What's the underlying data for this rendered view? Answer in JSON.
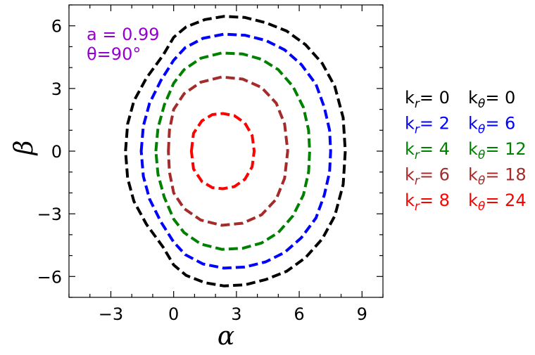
{
  "chart_data": {
    "type": "line",
    "xlabel": "α",
    "ylabel": "β",
    "xlim": [
      -5,
      10
    ],
    "ylim": [
      -7,
      7
    ],
    "xticks": [
      -3,
      0,
      3,
      6,
      9
    ],
    "yticks": [
      -6,
      -3,
      0,
      3,
      6
    ],
    "xtick_labels": [
      "−3",
      "0",
      "3",
      "6",
      "9"
    ],
    "ytick_labels": [
      "−6",
      "−3",
      "0",
      "3",
      "6"
    ],
    "grid": false,
    "legend_position": "right, outside plot",
    "annotation": {
      "line1": "a = 0.99",
      "line2": "θ=90°",
      "color": "#9400D3"
    },
    "series": [
      {
        "name_kr": "k_r = 0",
        "name_kt": "k_θ = 0",
        "kr_label": "k",
        "kr_sub": "r",
        "kr_val": "= 0",
        "kt_label": "k",
        "kt_sub": "θ",
        "kt_val": "= 0",
        "color": "#000000",
        "points": [
          [
            -2.3,
            0
          ],
          [
            -2.2,
            1.3
          ],
          [
            -1.9,
            2.4
          ],
          [
            -1.3,
            3.5
          ],
          [
            -0.5,
            4.6
          ],
          [
            0,
            5.45
          ],
          [
            0.6,
            5.95
          ],
          [
            1.5,
            6.3
          ],
          [
            2.4,
            6.45
          ],
          [
            3.4,
            6.4
          ],
          [
            4.4,
            6.15
          ],
          [
            5.4,
            5.75
          ],
          [
            6.3,
            5.1
          ],
          [
            7.1,
            4.2
          ],
          [
            7.7,
            3.1
          ],
          [
            8.1,
            1.6
          ],
          [
            8.2,
            0
          ],
          [
            8.1,
            -1.6
          ],
          [
            7.7,
            -3.1
          ],
          [
            7.1,
            -4.2
          ],
          [
            6.3,
            -5.1
          ],
          [
            5.4,
            -5.75
          ],
          [
            4.4,
            -6.15
          ],
          [
            3.4,
            -6.4
          ],
          [
            2.4,
            -6.45
          ],
          [
            1.5,
            -6.3
          ],
          [
            0.6,
            -5.95
          ],
          [
            0,
            -5.45
          ],
          [
            -0.5,
            -4.6
          ],
          [
            -1.3,
            -3.5
          ],
          [
            -1.9,
            -2.4
          ],
          [
            -2.2,
            -1.3
          ]
        ]
      },
      {
        "name_kr": "k_r = 2",
        "name_kt": "k_θ = 6",
        "kr_label": "k",
        "kr_sub": "r",
        "kr_val": "= 2",
        "kt_label": "k",
        "kt_sub": "θ",
        "kt_val": "= 6",
        "color": "#0000FF",
        "points": [
          [
            -1.55,
            0
          ],
          [
            -1.45,
            1.2
          ],
          [
            -1.15,
            2.3
          ],
          [
            -0.6,
            3.4
          ],
          [
            0,
            4.35
          ],
          [
            0.55,
            4.95
          ],
          [
            1.4,
            5.4
          ],
          [
            2.4,
            5.6
          ],
          [
            3.4,
            5.55
          ],
          [
            4.4,
            5.3
          ],
          [
            5.3,
            4.85
          ],
          [
            6.1,
            4.15
          ],
          [
            6.8,
            3.2
          ],
          [
            7.2,
            2.1
          ],
          [
            7.45,
            1.0
          ],
          [
            7.5,
            0
          ],
          [
            7.45,
            -1.0
          ],
          [
            7.2,
            -2.1
          ],
          [
            6.8,
            -3.2
          ],
          [
            6.1,
            -4.15
          ],
          [
            5.3,
            -4.85
          ],
          [
            4.4,
            -5.3
          ],
          [
            3.4,
            -5.55
          ],
          [
            2.4,
            -5.6
          ],
          [
            1.4,
            -5.4
          ],
          [
            0.55,
            -4.95
          ],
          [
            0,
            -4.35
          ],
          [
            -0.6,
            -3.4
          ],
          [
            -1.15,
            -2.3
          ],
          [
            -1.45,
            -1.2
          ]
        ]
      },
      {
        "name_kr": "k_r = 4",
        "name_kt": "k_θ = 12",
        "kr_label": "k",
        "kr_sub": "r",
        "kr_val": "= 4",
        "kt_label": "k",
        "kt_sub": "θ",
        "kt_val": "= 12",
        "color": "#008000",
        "points": [
          [
            -0.85,
            0
          ],
          [
            -0.75,
            1.1
          ],
          [
            -0.45,
            2.2
          ],
          [
            0,
            3.25
          ],
          [
            0.5,
            3.9
          ],
          [
            1.3,
            4.45
          ],
          [
            2.3,
            4.7
          ],
          [
            3.3,
            4.65
          ],
          [
            4.2,
            4.4
          ],
          [
            5.0,
            3.9
          ],
          [
            5.7,
            3.1
          ],
          [
            6.2,
            2.1
          ],
          [
            6.45,
            1.0
          ],
          [
            6.5,
            0
          ],
          [
            6.45,
            -1.0
          ],
          [
            6.2,
            -2.1
          ],
          [
            5.7,
            -3.1
          ],
          [
            5.0,
            -3.9
          ],
          [
            4.2,
            -4.4
          ],
          [
            3.3,
            -4.65
          ],
          [
            2.3,
            -4.7
          ],
          [
            1.3,
            -4.45
          ],
          [
            0.5,
            -3.9
          ],
          [
            0,
            -3.25
          ],
          [
            -0.45,
            -2.2
          ],
          [
            -0.75,
            -1.1
          ]
        ]
      },
      {
        "name_kr": "k_r = 6",
        "name_kt": "k_θ = 18",
        "kr_label": "k",
        "kr_sub": "r",
        "kr_val": "= 6",
        "kt_label": "k",
        "kt_sub": "θ",
        "kt_val": "= 18",
        "color": "#A52A2A",
        "points": [
          [
            -0.25,
            0
          ],
          [
            -0.2,
            1.0
          ],
          [
            0,
            2.0
          ],
          [
            0.5,
            2.75
          ],
          [
            1.3,
            3.3
          ],
          [
            2.3,
            3.55
          ],
          [
            3.3,
            3.45
          ],
          [
            4.2,
            3.05
          ],
          [
            4.9,
            2.3
          ],
          [
            5.3,
            1.3
          ],
          [
            5.45,
            0
          ],
          [
            5.3,
            -1.3
          ],
          [
            4.9,
            -2.3
          ],
          [
            4.2,
            -3.05
          ],
          [
            3.3,
            -3.45
          ],
          [
            2.3,
            -3.55
          ],
          [
            1.3,
            -3.3
          ],
          [
            0.5,
            -2.75
          ],
          [
            0,
            -2.0
          ],
          [
            -0.2,
            -1.0
          ]
        ]
      },
      {
        "name_kr": "k_r = 8",
        "name_kt": "k_θ = 24",
        "kr_label": "k",
        "kr_sub": "r",
        "kr_val": "= 8",
        "kt_label": "k",
        "kt_sub": "θ",
        "kt_val": "= 24",
        "color": "#FF0000",
        "points": [
          [
            0.85,
            0
          ],
          [
            0.95,
            0.85
          ],
          [
            1.35,
            1.45
          ],
          [
            1.85,
            1.75
          ],
          [
            2.35,
            1.8
          ],
          [
            2.9,
            1.7
          ],
          [
            3.4,
            1.35
          ],
          [
            3.75,
            0.75
          ],
          [
            3.85,
            0
          ],
          [
            3.75,
            -0.75
          ],
          [
            3.4,
            -1.35
          ],
          [
            2.9,
            -1.7
          ],
          [
            2.35,
            -1.8
          ],
          [
            1.85,
            -1.75
          ],
          [
            1.35,
            -1.45
          ],
          [
            0.95,
            -0.85
          ]
        ]
      }
    ]
  }
}
